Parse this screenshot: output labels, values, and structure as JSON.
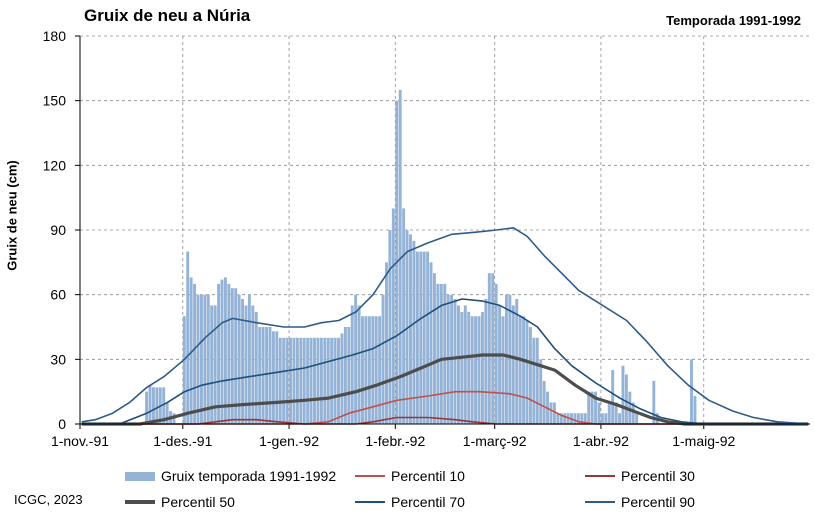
{
  "title": "Gruix de neu a Núria",
  "subtitle": "Temporada 1991-1992",
  "credit": "ICGC, 2023",
  "colors": {
    "bars": "#95b3d7",
    "p10": "#c0504d",
    "p30": "#953735",
    "p50": "#4d4d4d",
    "p70": "#1f4e79",
    "p90": "#2e5c8a",
    "grid": "#8c8c8c"
  },
  "chart_data": {
    "type": "bar",
    "title": "Gruix de neu a Núria",
    "subtitle": "Temporada 1991-1992",
    "ylabel": "Gruix de neu (cm)",
    "xlabel": "",
    "ylim": [
      0,
      180
    ],
    "yticks": [
      "0",
      "30",
      "60",
      "90",
      "120",
      "150",
      "180"
    ],
    "xlim": [
      "1991-11-01",
      "1992-05-31"
    ],
    "xticks": [
      {
        "date": "1991-11-01",
        "label": "1-nov.-91"
      },
      {
        "date": "1991-12-01",
        "label": "1-des.-91"
      },
      {
        "date": "1992-01-01",
        "label": "1-gen.-92"
      },
      {
        "date": "1992-02-01",
        "label": "1-febr.-92"
      },
      {
        "date": "1992-03-01",
        "label": "1-març-92"
      },
      {
        "date": "1992-04-01",
        "label": "1-abr.-92"
      },
      {
        "date": "1992-05-01",
        "label": "1-maig-92"
      }
    ],
    "grid": true,
    "legend_position": "bottom",
    "bars": {
      "name": "Gruix temporada 1991-1992",
      "points": [
        [
          "1991-11-20",
          15
        ],
        [
          "1991-11-21",
          18
        ],
        [
          "1991-11-22",
          17
        ],
        [
          "1991-11-23",
          17
        ],
        [
          "1991-11-24",
          17
        ],
        [
          "1991-11-25",
          17
        ],
        [
          "1991-11-26",
          10
        ],
        [
          "1991-11-27",
          6
        ],
        [
          "1991-11-28",
          5
        ],
        [
          "1991-12-01",
          50
        ],
        [
          "1991-12-02",
          80
        ],
        [
          "1991-12-03",
          68
        ],
        [
          "1991-12-04",
          65
        ],
        [
          "1991-12-05",
          60
        ],
        [
          "1991-12-06",
          60
        ],
        [
          "1991-12-07",
          60
        ],
        [
          "1991-12-08",
          60
        ],
        [
          "1991-12-09",
          55
        ],
        [
          "1991-12-10",
          55
        ],
        [
          "1991-12-11",
          65
        ],
        [
          "1991-12-12",
          67
        ],
        [
          "1991-12-13",
          68
        ],
        [
          "1991-12-14",
          65
        ],
        [
          "1991-12-15",
          63
        ],
        [
          "1991-12-16",
          63
        ],
        [
          "1991-12-17",
          60
        ],
        [
          "1991-12-18",
          58
        ],
        [
          "1991-12-19",
          55
        ],
        [
          "1991-12-20",
          60
        ],
        [
          "1991-12-21",
          55
        ],
        [
          "1991-12-22",
          52
        ],
        [
          "1991-12-23",
          45
        ],
        [
          "1991-12-24",
          45
        ],
        [
          "1991-12-25",
          45
        ],
        [
          "1991-12-26",
          45
        ],
        [
          "1991-12-27",
          43
        ],
        [
          "1991-12-28",
          43
        ],
        [
          "1991-12-29",
          40
        ],
        [
          "1991-12-30",
          40
        ],
        [
          "1991-12-31",
          40
        ],
        [
          "1992-01-01",
          40
        ],
        [
          "1992-01-02",
          40
        ],
        [
          "1992-01-03",
          40
        ],
        [
          "1992-01-04",
          40
        ],
        [
          "1992-01-05",
          40
        ],
        [
          "1992-01-06",
          40
        ],
        [
          "1992-01-07",
          40
        ],
        [
          "1992-01-08",
          40
        ],
        [
          "1992-01-09",
          40
        ],
        [
          "1992-01-10",
          40
        ],
        [
          "1992-01-11",
          40
        ],
        [
          "1992-01-12",
          40
        ],
        [
          "1992-01-13",
          40
        ],
        [
          "1992-01-14",
          40
        ],
        [
          "1992-01-15",
          40
        ],
        [
          "1992-01-16",
          42
        ],
        [
          "1992-01-17",
          45
        ],
        [
          "1992-01-18",
          45
        ],
        [
          "1992-01-19",
          55
        ],
        [
          "1992-01-20",
          60
        ],
        [
          "1992-01-21",
          55
        ],
        [
          "1992-01-22",
          50
        ],
        [
          "1992-01-23",
          50
        ],
        [
          "1992-01-24",
          50
        ],
        [
          "1992-01-25",
          50
        ],
        [
          "1992-01-26",
          50
        ],
        [
          "1992-01-27",
          50
        ],
        [
          "1992-01-28",
          60
        ],
        [
          "1992-01-29",
          75
        ],
        [
          "1992-01-30",
          90
        ],
        [
          "1992-01-31",
          100
        ],
        [
          "1992-02-01",
          150
        ],
        [
          "1992-02-02",
          155
        ],
        [
          "1992-02-03",
          100
        ],
        [
          "1992-02-04",
          90
        ],
        [
          "1992-02-05",
          88
        ],
        [
          "1992-02-06",
          85
        ],
        [
          "1992-02-07",
          80
        ],
        [
          "1992-02-08",
          80
        ],
        [
          "1992-02-09",
          80
        ],
        [
          "1992-02-10",
          80
        ],
        [
          "1992-02-11",
          75
        ],
        [
          "1992-02-12",
          70
        ],
        [
          "1992-02-13",
          65
        ],
        [
          "1992-02-14",
          65
        ],
        [
          "1992-02-15",
          65
        ],
        [
          "1992-02-16",
          60
        ],
        [
          "1992-02-17",
          60
        ],
        [
          "1992-02-18",
          58
        ],
        [
          "1992-02-19",
          55
        ],
        [
          "1992-02-20",
          52
        ],
        [
          "1992-02-21",
          55
        ],
        [
          "1992-02-22",
          52
        ],
        [
          "1992-02-23",
          50
        ],
        [
          "1992-02-24",
          50
        ],
        [
          "1992-02-25",
          50
        ],
        [
          "1992-02-26",
          52
        ],
        [
          "1992-02-27",
          58
        ],
        [
          "1992-02-28",
          70
        ],
        [
          "1992-02-29",
          70
        ],
        [
          "1992-03-01",
          65
        ],
        [
          "1992-03-02",
          55
        ],
        [
          "1992-03-03",
          50
        ],
        [
          "1992-03-04",
          60
        ],
        [
          "1992-03-05",
          60
        ],
        [
          "1992-03-06",
          55
        ],
        [
          "1992-03-07",
          58
        ],
        [
          "1992-03-08",
          50
        ],
        [
          "1992-03-09",
          50
        ],
        [
          "1992-03-10",
          48
        ],
        [
          "1992-03-11",
          45
        ],
        [
          "1992-03-12",
          40
        ],
        [
          "1992-03-13",
          40
        ],
        [
          "1992-03-14",
          30
        ],
        [
          "1992-03-15",
          20
        ],
        [
          "1992-03-16",
          15
        ],
        [
          "1992-03-17",
          10
        ],
        [
          "1992-03-18",
          10
        ],
        [
          "1992-03-19",
          5
        ],
        [
          "1992-03-20",
          5
        ],
        [
          "1992-03-21",
          5
        ],
        [
          "1992-03-22",
          5
        ],
        [
          "1992-03-23",
          5
        ],
        [
          "1992-03-24",
          5
        ],
        [
          "1992-03-25",
          5
        ],
        [
          "1992-03-26",
          5
        ],
        [
          "1992-03-27",
          5
        ],
        [
          "1992-03-28",
          15
        ],
        [
          "1992-03-29",
          15
        ],
        [
          "1992-03-30",
          15
        ],
        [
          "1992-03-31",
          10
        ],
        [
          "1992-04-01",
          5
        ],
        [
          "1992-04-02",
          5
        ],
        [
          "1992-04-03",
          10
        ],
        [
          "1992-04-04",
          25
        ],
        [
          "1992-04-05",
          10
        ],
        [
          "1992-04-06",
          5
        ],
        [
          "1992-04-07",
          27
        ],
        [
          "1992-04-08",
          23
        ],
        [
          "1992-04-09",
          15
        ],
        [
          "1992-04-10",
          10
        ],
        [
          "1992-04-11",
          5
        ],
        [
          "1992-04-12",
          0
        ],
        [
          "1992-04-13",
          0
        ],
        [
          "1992-04-14",
          0
        ],
        [
          "1992-04-15",
          0
        ],
        [
          "1992-04-16",
          20
        ],
        [
          "1992-04-17",
          5
        ],
        [
          "1992-04-27",
          30
        ],
        [
          "1992-04-28",
          13
        ]
      ]
    },
    "series": [
      {
        "name": "Percentil 10",
        "points": [
          [
            "1991-11-01",
            0
          ],
          [
            "1992-01-05",
            0
          ],
          [
            "1992-01-12",
            1
          ],
          [
            "1992-01-18",
            5
          ],
          [
            "1992-01-25",
            8
          ],
          [
            "1992-02-01",
            11
          ],
          [
            "1992-02-10",
            13
          ],
          [
            "1992-02-18",
            15
          ],
          [
            "1992-02-25",
            15
          ],
          [
            "1992-03-05",
            14
          ],
          [
            "1992-03-10",
            12
          ],
          [
            "1992-03-15",
            8
          ],
          [
            "1992-03-20",
            4
          ],
          [
            "1992-03-25",
            1
          ],
          [
            "1992-03-30",
            0
          ],
          [
            "1992-05-31",
            0
          ]
        ]
      },
      {
        "name": "Percentil 30",
        "points": [
          [
            "1991-11-01",
            0
          ],
          [
            "1991-12-05",
            0
          ],
          [
            "1991-12-10",
            1
          ],
          [
            "1991-12-15",
            2
          ],
          [
            "1991-12-22",
            2
          ],
          [
            "1991-12-28",
            1
          ],
          [
            "1992-01-05",
            0
          ],
          [
            "1992-01-20",
            0
          ],
          [
            "1992-01-25",
            1
          ],
          [
            "1992-02-01",
            3
          ],
          [
            "1992-02-10",
            3
          ],
          [
            "1992-02-18",
            2
          ],
          [
            "1992-02-23",
            1
          ],
          [
            "1992-03-01",
            0
          ],
          [
            "1992-05-31",
            0
          ]
        ]
      },
      {
        "name": "Percentil 50",
        "points": [
          [
            "1991-11-01",
            0
          ],
          [
            "1991-11-18",
            0
          ],
          [
            "1991-11-25",
            2
          ],
          [
            "1991-12-02",
            5
          ],
          [
            "1991-12-10",
            8
          ],
          [
            "1991-12-18",
            9
          ],
          [
            "1991-12-28",
            10
          ],
          [
            "1992-01-05",
            11
          ],
          [
            "1992-01-12",
            12
          ],
          [
            "1992-01-20",
            15
          ],
          [
            "1992-01-26",
            18
          ],
          [
            "1992-02-02",
            22
          ],
          [
            "1992-02-08",
            26
          ],
          [
            "1992-02-14",
            30
          ],
          [
            "1992-02-20",
            31
          ],
          [
            "1992-02-26",
            32
          ],
          [
            "1992-03-03",
            32
          ],
          [
            "1992-03-08",
            30
          ],
          [
            "1992-03-14",
            27
          ],
          [
            "1992-03-18",
            25
          ],
          [
            "1992-03-24",
            18
          ],
          [
            "1992-03-30",
            12
          ],
          [
            "1992-04-05",
            9
          ],
          [
            "1992-04-10",
            6
          ],
          [
            "1992-04-15",
            3
          ],
          [
            "1992-04-20",
            1
          ],
          [
            "1992-04-25",
            0
          ],
          [
            "1992-05-31",
            0
          ]
        ]
      },
      {
        "name": "Percentil 70",
        "points": [
          [
            "1991-11-01",
            0
          ],
          [
            "1991-11-12",
            0
          ],
          [
            "1991-11-20",
            5
          ],
          [
            "1991-11-26",
            10
          ],
          [
            "1991-12-01",
            15
          ],
          [
            "1991-12-06",
            18
          ],
          [
            "1991-12-12",
            20
          ],
          [
            "1991-12-20",
            22
          ],
          [
            "1991-12-28",
            24
          ],
          [
            "1992-01-05",
            26
          ],
          [
            "1992-01-12",
            29
          ],
          [
            "1992-01-19",
            32
          ],
          [
            "1992-01-25",
            35
          ],
          [
            "1992-02-01",
            41
          ],
          [
            "1992-02-08",
            49
          ],
          [
            "1992-02-14",
            55
          ],
          [
            "1992-02-20",
            58
          ],
          [
            "1992-02-26",
            57
          ],
          [
            "1992-03-02",
            55
          ],
          [
            "1992-03-08",
            50
          ],
          [
            "1992-03-13",
            45
          ],
          [
            "1992-03-18",
            35
          ],
          [
            "1992-03-23",
            27
          ],
          [
            "1992-03-30",
            19
          ],
          [
            "1992-04-06",
            12
          ],
          [
            "1992-04-12",
            7
          ],
          [
            "1992-04-18",
            3
          ],
          [
            "1992-04-24",
            1
          ],
          [
            "1992-05-01",
            0
          ],
          [
            "1992-05-31",
            0
          ]
        ]
      },
      {
        "name": "Percentil 90",
        "points": [
          [
            "1991-11-01",
            1
          ],
          [
            "1991-11-05",
            2
          ],
          [
            "1991-11-10",
            5
          ],
          [
            "1991-11-15",
            10
          ],
          [
            "1991-11-20",
            17
          ],
          [
            "1991-11-25",
            22
          ],
          [
            "1991-12-01",
            30
          ],
          [
            "1991-12-07",
            40
          ],
          [
            "1991-12-12",
            47
          ],
          [
            "1991-12-15",
            49
          ],
          [
            "1991-12-22",
            47
          ],
          [
            "1991-12-30",
            45
          ],
          [
            "1992-01-05",
            45
          ],
          [
            "1992-01-10",
            47
          ],
          [
            "1992-01-15",
            48
          ],
          [
            "1992-01-20",
            52
          ],
          [
            "1992-01-25",
            60
          ],
          [
            "1992-01-30",
            72
          ],
          [
            "1992-02-04",
            80
          ],
          [
            "1992-02-10",
            84
          ],
          [
            "1992-02-17",
            88
          ],
          [
            "1992-02-24",
            89
          ],
          [
            "1992-03-01",
            90
          ],
          [
            "1992-03-06",
            91
          ],
          [
            "1992-03-10",
            87
          ],
          [
            "1992-03-15",
            78
          ],
          [
            "1992-03-20",
            70
          ],
          [
            "1992-03-25",
            62
          ],
          [
            "1992-04-01",
            55
          ],
          [
            "1992-04-08",
            48
          ],
          [
            "1992-04-14",
            38
          ],
          [
            "1992-04-20",
            27
          ],
          [
            "1992-04-26",
            18
          ],
          [
            "1992-05-02",
            11
          ],
          [
            "1992-05-09",
            6
          ],
          [
            "1992-05-15",
            3
          ],
          [
            "1992-05-22",
            1
          ],
          [
            "1992-05-31",
            0
          ]
        ]
      }
    ]
  },
  "legend": [
    {
      "label": "Gruix temporada 1991-1992",
      "kind": "bar",
      "color": "#95b3d7"
    },
    {
      "label": "Percentil 10",
      "kind": "line",
      "color": "#c0504d"
    },
    {
      "label": "Percentil 30",
      "kind": "line",
      "color": "#953735"
    },
    {
      "label": "Percentil 50",
      "kind": "line-thick",
      "color": "#4d4d4d"
    },
    {
      "label": "Percentil 70",
      "kind": "line",
      "color": "#1f4e79"
    },
    {
      "label": "Percentil 90",
      "kind": "line",
      "color": "#2e5c8a"
    }
  ]
}
